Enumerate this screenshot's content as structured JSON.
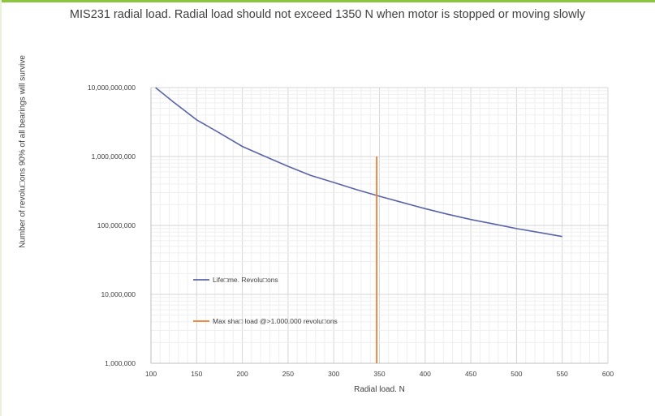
{
  "chart_data": {
    "type": "line",
    "title": "MIS231 radial load. Radial load should not exceed 1350 N when motor is stopped or moving slowly",
    "xlabel": "Radial load. N",
    "ylabel": "Number of revolu\u0000ons 90% of all bearings will survive",
    "ylabel_display": "Number of revolu□ons 90% of all bearings will survive",
    "x_ticks": [
      100,
      150,
      200,
      250,
      300,
      350,
      400,
      450,
      500,
      550,
      600
    ],
    "y_ticks": [
      "1,000,000",
      "10,000,000",
      "100,000,000",
      "1,000,000,000",
      "10,000,000,000"
    ],
    "y_tick_values": [
      1000000,
      10000000,
      100000000,
      1000000000,
      10000000000
    ],
    "xlim": [
      100,
      600
    ],
    "ylim": [
      1000000,
      10000000000
    ],
    "yscale": "log",
    "grid": true,
    "legend_placement": "inside-left",
    "series": [
      {
        "name": "Life□me. Revolu□ons",
        "color": "#5a64a8",
        "x": [
          105,
          125,
          150,
          175,
          200,
          225,
          250,
          275,
          300,
          325,
          350,
          375,
          400,
          425,
          450,
          475,
          500,
          525,
          550
        ],
        "y": [
          10000000000,
          6100000000,
          3400000000,
          2200000000,
          1400000000,
          1000000000,
          720000000,
          530000000,
          420000000,
          330000000,
          265000000,
          215000000,
          175000000,
          145000000,
          122000000,
          105000000,
          90000000,
          79000000,
          69000000
        ]
      },
      {
        "name": "Max sha□ load @>1.000.000 revolu□ons",
        "color": "#ed7d31",
        "x": [
          347,
          347
        ],
        "y": [
          1000000,
          1000000000
        ]
      }
    ]
  }
}
